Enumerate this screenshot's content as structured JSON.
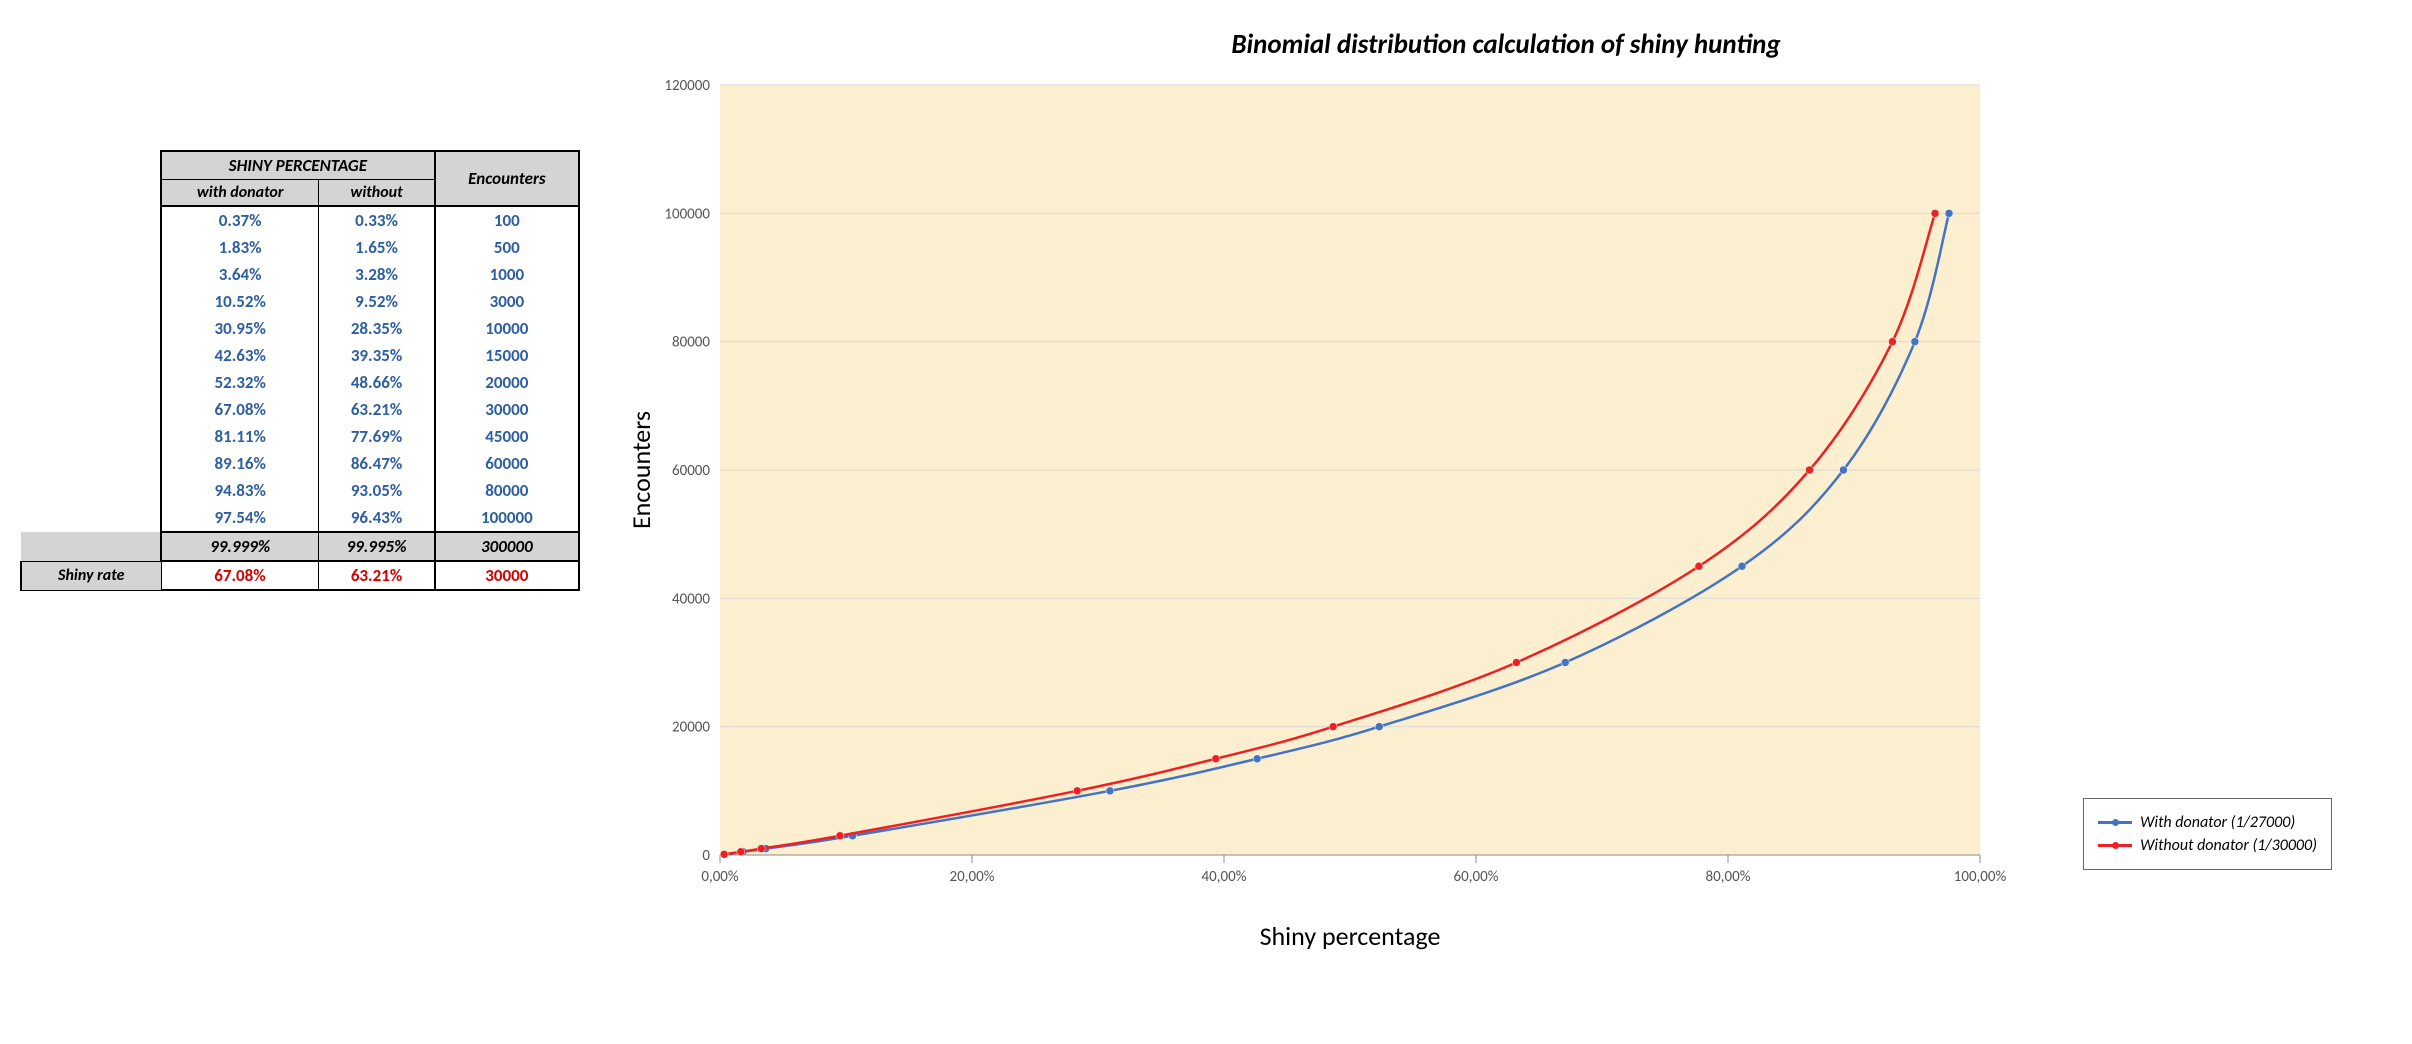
{
  "table": {
    "group_header": "SHINY PERCENTAGE",
    "col_with": "with donator",
    "col_without": "without",
    "col_enc": "Encounters",
    "rows": [
      {
        "with": "0.37%",
        "without": "0.33%",
        "enc": "100"
      },
      {
        "with": "1.83%",
        "without": "1.65%",
        "enc": "500"
      },
      {
        "with": "3.64%",
        "without": "3.28%",
        "enc": "1000"
      },
      {
        "with": "10.52%",
        "without": "9.52%",
        "enc": "3000"
      },
      {
        "with": "30.95%",
        "without": "28.35%",
        "enc": "10000"
      },
      {
        "with": "42.63%",
        "without": "39.35%",
        "enc": "15000"
      },
      {
        "with": "52.32%",
        "without": "48.66%",
        "enc": "20000"
      },
      {
        "with": "67.08%",
        "without": "63.21%",
        "enc": "30000"
      },
      {
        "with": "81.11%",
        "without": "77.69%",
        "enc": "45000"
      },
      {
        "with": "89.16%",
        "without": "86.47%",
        "enc": "60000"
      },
      {
        "with": "94.83%",
        "without": "93.05%",
        "enc": "80000"
      },
      {
        "with": "97.54%",
        "without": "96.43%",
        "enc": "100000"
      }
    ],
    "hl_row": {
      "with": "99.999%",
      "without": "99.995%",
      "enc": "300000"
    },
    "rate_label": "Shiny rate",
    "rate_row": {
      "with": "67.08%",
      "without": "63.21%",
      "enc": "30000"
    }
  },
  "chart": {
    "title": "Binomial distribution calculation of shiny hunting",
    "xlabel": "Shiny percentage",
    "ylabel": "Encounters",
    "plot_bg": "#fcefcf",
    "grid_color": "#d9d9d9",
    "xlim": [
      0,
      100
    ],
    "ylim": [
      0,
      120000
    ],
    "xticks": [
      0,
      20,
      40,
      60,
      80,
      100
    ],
    "xtick_labels": [
      "0,00%",
      "20,00%",
      "40,00%",
      "60,00%",
      "80,00%",
      "100,00%"
    ],
    "yticks": [
      0,
      20000,
      40000,
      60000,
      80000,
      100000,
      120000
    ],
    "ytick_labels": [
      "0",
      "20000",
      "40000",
      "60000",
      "80000",
      "100000",
      "120000"
    ],
    "series": [
      {
        "name": "With donator (1/27000)",
        "color": "#4472c4",
        "line_width": 2.5,
        "marker_size": 4,
        "points": [
          [
            0.37,
            100
          ],
          [
            1.83,
            500
          ],
          [
            3.64,
            1000
          ],
          [
            10.52,
            3000
          ],
          [
            30.95,
            10000
          ],
          [
            42.63,
            15000
          ],
          [
            52.32,
            20000
          ],
          [
            67.08,
            30000
          ],
          [
            81.11,
            45000
          ],
          [
            89.16,
            60000
          ],
          [
            94.83,
            80000
          ],
          [
            97.54,
            100000
          ]
        ]
      },
      {
        "name": "Without donator (1/30000)",
        "color": "#ed2024",
        "line_width": 2.5,
        "marker_size": 4,
        "points": [
          [
            0.33,
            100
          ],
          [
            1.65,
            500
          ],
          [
            3.28,
            1000
          ],
          [
            9.52,
            3000
          ],
          [
            28.35,
            10000
          ],
          [
            39.35,
            15000
          ],
          [
            48.66,
            20000
          ],
          [
            63.21,
            30000
          ],
          [
            77.69,
            45000
          ],
          [
            86.47,
            60000
          ],
          [
            93.05,
            80000
          ],
          [
            96.43,
            100000
          ]
        ]
      }
    ],
    "legend_series": [
      {
        "label": "With donator (1/27000)",
        "color": "#4472c4"
      },
      {
        "label": "Without donator (1/30000)",
        "color": "#ed2024"
      }
    ],
    "label_fontsize": 26,
    "tick_fontsize": 15
  }
}
